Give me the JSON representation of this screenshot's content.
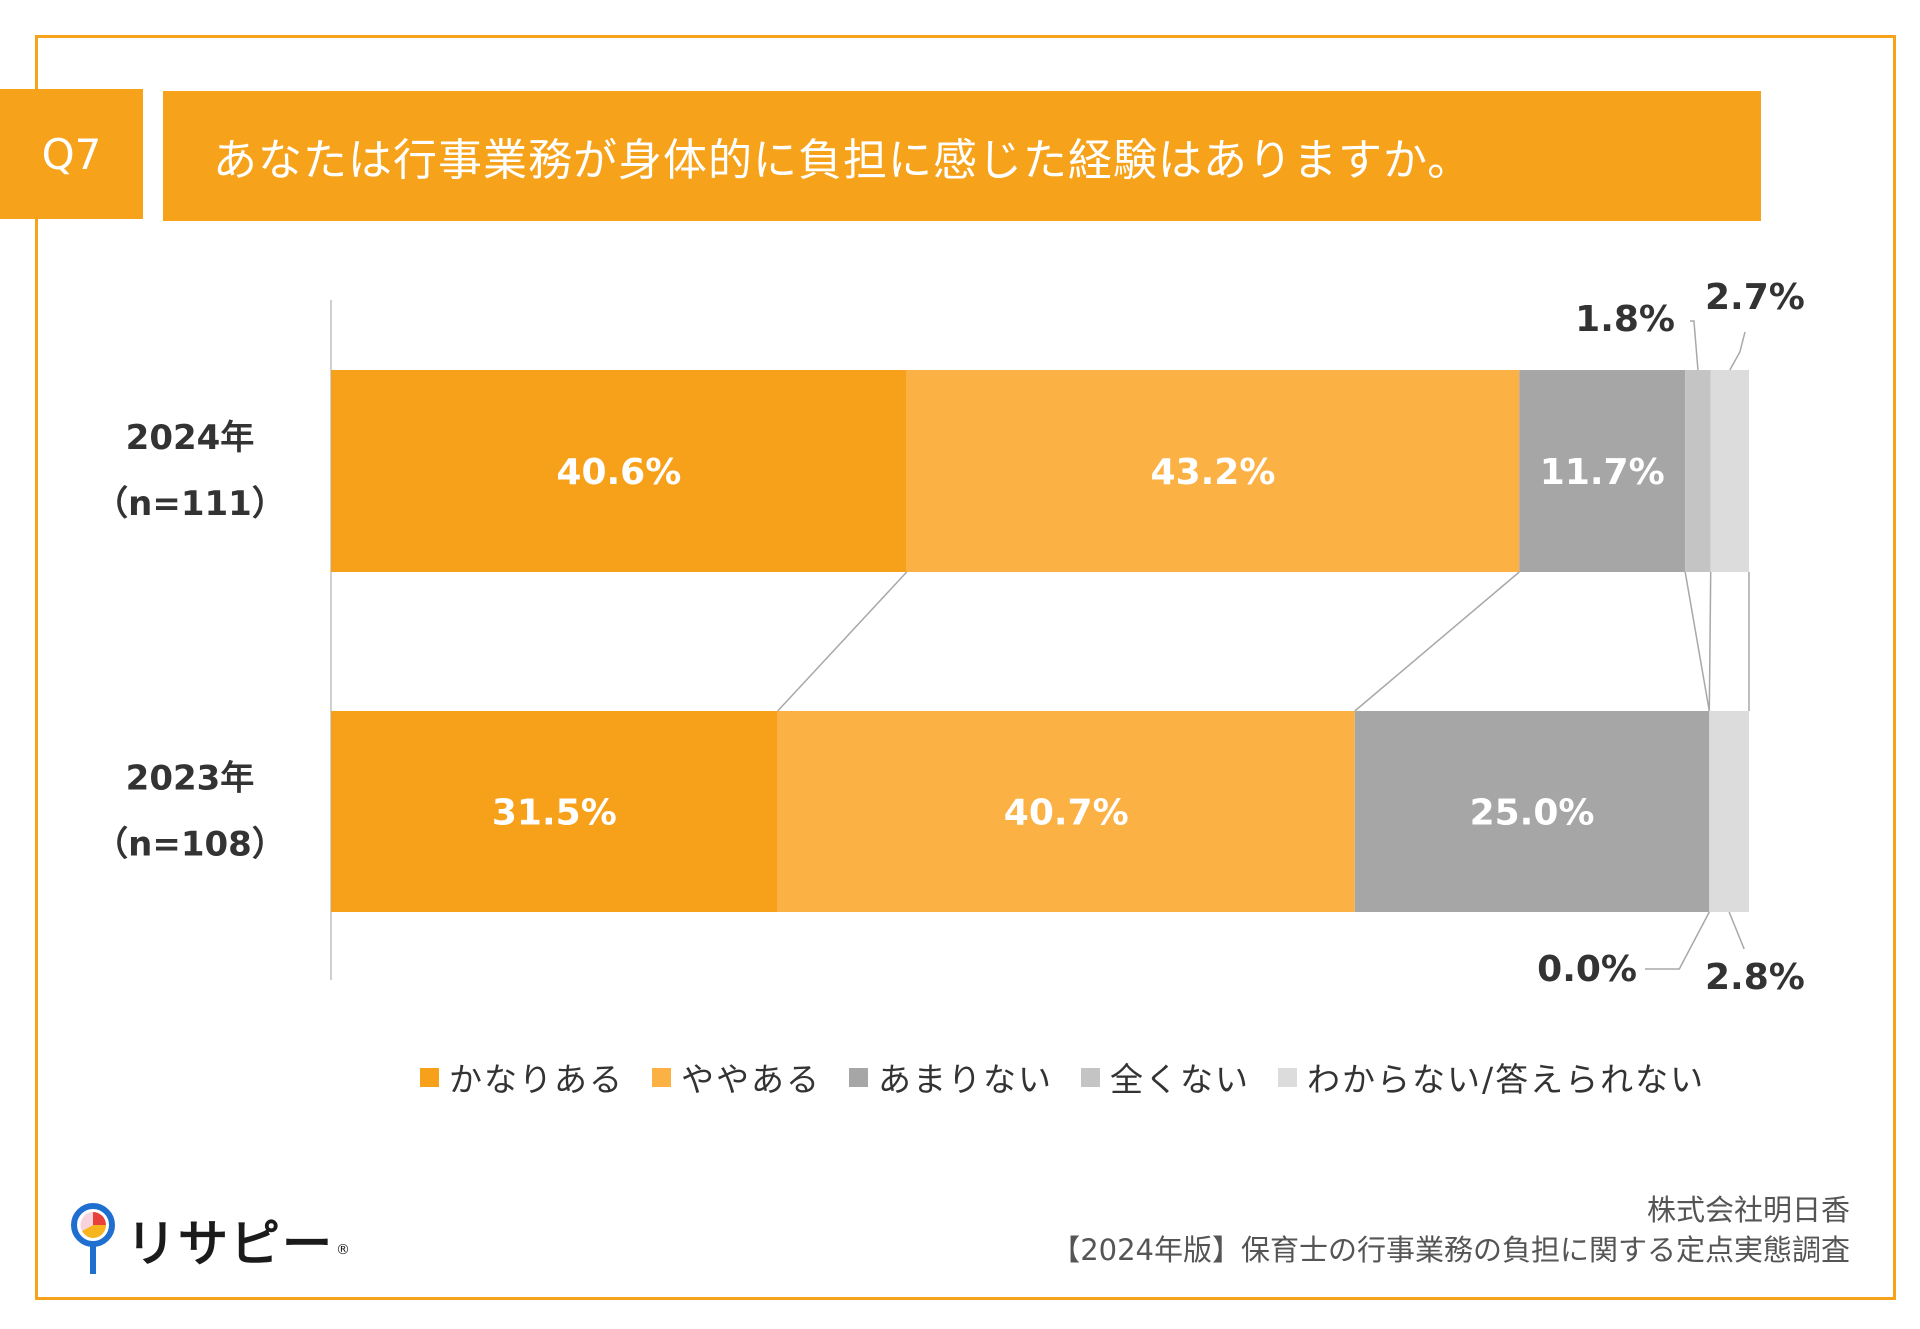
{
  "question": {
    "number": "Q7",
    "title": "あなたは行事業務が身体的に負担に感じた経験はありますか。"
  },
  "colors": {
    "accent": "#f6a21b",
    "series": [
      "#f7a01a",
      "#fbb144",
      "#a6a6a6",
      "#c4c4c4",
      "#dcdcdc"
    ],
    "connector": "#a8a8a8"
  },
  "chart_data": {
    "type": "bar",
    "orientation": "horizontal",
    "stacked": "100%",
    "categories": [
      "2024年（n=111）",
      "2023年（n=108）"
    ],
    "category_lines": [
      [
        "2024年",
        "（n=111）"
      ],
      [
        "2023年",
        "（n=108）"
      ]
    ],
    "series": [
      {
        "name": "かなりある",
        "values": [
          40.6,
          31.5
        ]
      },
      {
        "name": "ややある",
        "values": [
          43.2,
          40.7
        ]
      },
      {
        "name": "あまりない",
        "values": [
          11.7,
          25.0
        ]
      },
      {
        "name": "全くない",
        "values": [
          1.8,
          0.0
        ]
      },
      {
        "name": "わからない/答えられない",
        "values": [
          2.7,
          2.8
        ]
      }
    ],
    "labels": [
      [
        "40.6%",
        "43.2%",
        "11.7%",
        "1.8%",
        "2.7%"
      ],
      [
        "31.5%",
        "40.7%",
        "25.0%",
        "0.0%",
        "2.8%"
      ]
    ],
    "value_range": [
      0,
      100
    ],
    "connector_lines": true,
    "legend_position": "bottom"
  },
  "legend": {
    "items": [
      "かなりある",
      "ややある",
      "あまりない",
      "全くない",
      "わからない/答えられない"
    ]
  },
  "logo": {
    "text": "リサピー",
    "mark": "®"
  },
  "credit": {
    "company": "株式会社明日香",
    "survey": "【2024年版】保育士の行事業務の負担に関する定点実態調査"
  }
}
